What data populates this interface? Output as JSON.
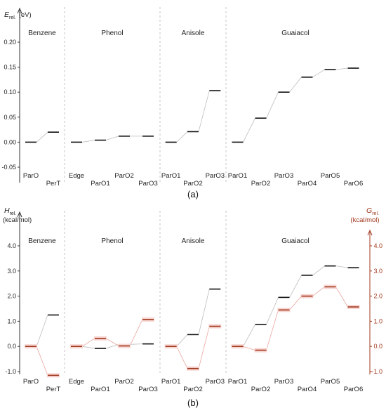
{
  "chart_data": [
    {
      "type": "line",
      "panel_label": "(a)",
      "ylabel_main": "E",
      "ylabel_sub": "rel.",
      "ylabel_unit": "(eV)",
      "ylim": [
        -0.05,
        0.2
      ],
      "yticks": [
        "-0.05",
        "0.00",
        "0.05",
        "0.10",
        "0.15",
        "0.20"
      ],
      "ytick_values": [
        -0.05,
        0,
        0.05,
        0.1,
        0.15,
        0.2
      ],
      "grid": false,
      "groups": [
        {
          "name": "Benzene",
          "categories": [
            "ParO",
            "PerT"
          ],
          "values": [
            0.0,
            0.02
          ]
        },
        {
          "name": "Phenol",
          "categories": [
            "Edge",
            "ParO1",
            "ParO2",
            "ParO3"
          ],
          "values": [
            0.0,
            0.004,
            0.012,
            0.012
          ]
        },
        {
          "name": "Anisole",
          "categories": [
            "ParO1",
            "ParO2",
            "ParO3"
          ],
          "values": [
            0.0,
            0.021,
            0.103
          ]
        },
        {
          "name": "Guaiacol",
          "categories": [
            "ParO1",
            "ParO2",
            "ParO3",
            "ParO4",
            "ParO5",
            "ParO6"
          ],
          "values": [
            0.0,
            0.048,
            0.1,
            0.13,
            0.145,
            0.148
          ]
        }
      ]
    },
    {
      "type": "line",
      "panel_label": "(b)",
      "ylabel_main": "H",
      "ylabel_sub": "rel.",
      "ylabel_unit": "(kcal/mol)",
      "ylabel2_main": "G",
      "ylabel2_sub": "rel.",
      "ylabel2_unit": "(kcal/mol)",
      "ylim": [
        -1.0,
        4.0
      ],
      "yticks": [
        "-1.0",
        "0.0",
        "1.0",
        "2.0",
        "3.0",
        "4.0"
      ],
      "ytick_values": [
        -1,
        0,
        1,
        2,
        3,
        4
      ],
      "grid": false,
      "colors": {
        "H": "#111111",
        "G": "#a0381e"
      },
      "groups": [
        {
          "name": "Benzene",
          "categories": [
            "ParO",
            "PerT"
          ],
          "series": [
            {
              "name": "H",
              "values": [
                0.0,
                1.25
              ]
            },
            {
              "name": "G",
              "values": [
                0.0,
                -1.15
              ]
            }
          ]
        },
        {
          "name": "Phenol",
          "categories": [
            "Edge",
            "ParO1",
            "ParO2",
            "ParO3"
          ],
          "series": [
            {
              "name": "H",
              "values": [
                0.0,
                -0.08,
                0.08,
                0.1
              ]
            },
            {
              "name": "G",
              "values": [
                0.0,
                0.32,
                0.02,
                1.07
              ]
            }
          ]
        },
        {
          "name": "Anisole",
          "categories": [
            "ParO1",
            "ParO2",
            "ParO3"
          ],
          "series": [
            {
              "name": "H",
              "values": [
                0.0,
                0.47,
                2.28
              ]
            },
            {
              "name": "G",
              "values": [
                0.0,
                -0.88,
                0.8
              ]
            }
          ]
        },
        {
          "name": "Guaiacol",
          "categories": [
            "ParO1",
            "ParO2",
            "ParO3",
            "ParO4",
            "ParO5",
            "ParO6"
          ],
          "series": [
            {
              "name": "H",
              "values": [
                0.0,
                0.87,
                1.95,
                2.83,
                3.2,
                3.13
              ]
            },
            {
              "name": "G",
              "values": [
                0.0,
                -0.15,
                1.45,
                2.0,
                2.37,
                1.57
              ]
            }
          ]
        }
      ]
    }
  ]
}
